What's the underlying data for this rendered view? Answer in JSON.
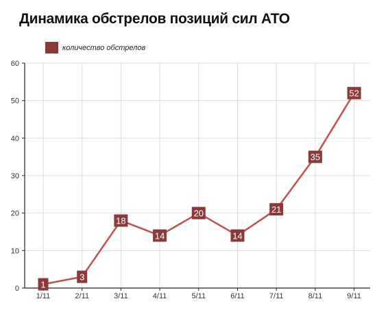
{
  "chart_data": {
    "type": "line",
    "title": "Динамика обстрелов позиций сил АТО",
    "xlabel": "",
    "ylabel": "",
    "categories": [
      "1/11",
      "2/11",
      "3/11",
      "4/11",
      "5/11",
      "6/11",
      "7/11",
      "8/11",
      "9/11"
    ],
    "series": [
      {
        "name": "количество обстрелов",
        "values": [
          1,
          3,
          18,
          14,
          20,
          14,
          21,
          35,
          52
        ]
      }
    ],
    "ylim": [
      0,
      60
    ],
    "yticks": [
      0,
      10,
      20,
      30,
      40,
      50,
      60
    ],
    "grid": true,
    "legend": "top-left",
    "colors": {
      "series": "#c0504d",
      "marker": "#8b3a3a",
      "grid": "#dcdcdc",
      "axis": "#222222"
    }
  }
}
